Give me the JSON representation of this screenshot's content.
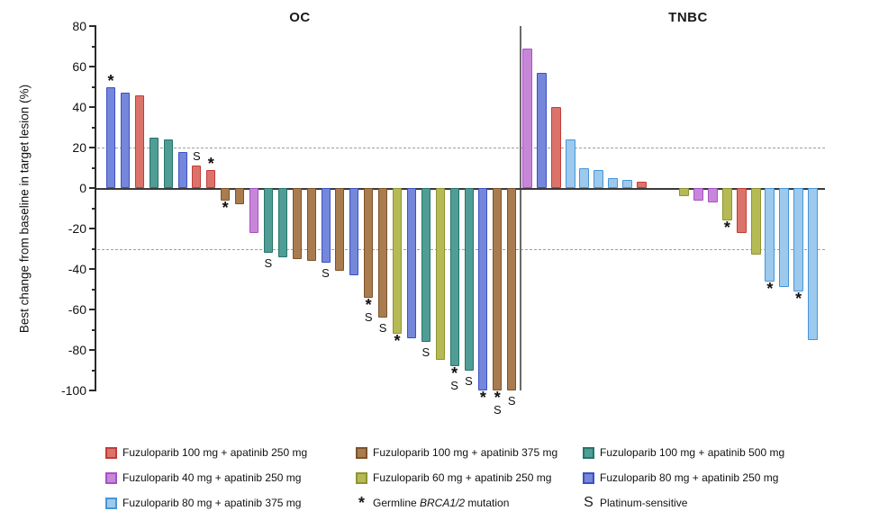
{
  "chart_data": {
    "type": "bar",
    "subtype": "waterfall",
    "title": "",
    "ylabel": "Best change from baseline in target lesion (%)",
    "xlabel": "",
    "ylim": [
      -100,
      80
    ],
    "yticks": [
      80,
      60,
      40,
      20,
      0,
      -20,
      -40,
      -60,
      -80,
      -100
    ],
    "reference_lines": [
      20,
      -30
    ],
    "grid": "horizontal dashed reference lines at +20 and -30 only",
    "legend_position": "bottom",
    "mark_legend": {
      "*": "Germline BRCA1/2 mutation",
      "S": "Platinum-sensitive"
    },
    "groups": {
      "red": "Fuzuloparib 100 mg + apatinib 250 mg",
      "orchid": "Fuzuloparib 40 mg + apatinib 250 mg",
      "lightblue": "Fuzuloparib 80 mg + apatinib 375 mg",
      "brown": "Fuzuloparib 100 mg + apatinib 375 mg",
      "olive": "Fuzuloparib 60 mg + apatinib 250 mg",
      "teal": "Fuzuloparib 100 mg + apatinib 500 mg",
      "blueviolet": "Fuzuloparib 80 mg + apatinib 250 mg"
    },
    "panels": [
      {
        "title": "OC",
        "bars": [
          {
            "value": 50,
            "group": "blueviolet",
            "mark": "*"
          },
          {
            "value": 47,
            "group": "blueviolet",
            "mark": ""
          },
          {
            "value": 46,
            "group": "red",
            "mark": ""
          },
          {
            "value": 25,
            "group": "teal",
            "mark": ""
          },
          {
            "value": 24,
            "group": "teal",
            "mark": ""
          },
          {
            "value": 18,
            "group": "blueviolet",
            "mark": ""
          },
          {
            "value": 11,
            "group": "red",
            "mark": "S"
          },
          {
            "value": 9,
            "group": "red",
            "mark": "*"
          },
          {
            "value": -6,
            "group": "brown",
            "mark": "*"
          },
          {
            "value": -8,
            "group": "brown",
            "mark": ""
          },
          {
            "value": -22,
            "group": "orchid",
            "mark": ""
          },
          {
            "value": -32,
            "group": "teal",
            "mark": "S"
          },
          {
            "value": -34,
            "group": "teal",
            "mark": ""
          },
          {
            "value": -35,
            "group": "brown",
            "mark": ""
          },
          {
            "value": -36,
            "group": "brown",
            "mark": ""
          },
          {
            "value": -37,
            "group": "blueviolet",
            "mark": "S"
          },
          {
            "value": -41,
            "group": "brown",
            "mark": ""
          },
          {
            "value": -43,
            "group": "blueviolet",
            "mark": ""
          },
          {
            "value": -54,
            "group": "brown",
            "mark": "*S"
          },
          {
            "value": -64,
            "group": "brown",
            "mark": "S"
          },
          {
            "value": -72,
            "group": "olive",
            "mark": "*"
          },
          {
            "value": -74,
            "group": "blueviolet",
            "mark": ""
          },
          {
            "value": -76,
            "group": "teal",
            "mark": "S"
          },
          {
            "value": -85,
            "group": "olive",
            "mark": ""
          },
          {
            "value": -88,
            "group": "teal",
            "mark": "*S"
          },
          {
            "value": -90,
            "group": "teal",
            "mark": "S"
          },
          {
            "value": -100,
            "group": "blueviolet",
            "mark": "*"
          },
          {
            "value": -100,
            "group": "brown",
            "mark": "*S"
          },
          {
            "value": -100,
            "group": "brown",
            "mark": "S"
          }
        ]
      },
      {
        "title": "TNBC",
        "bars": [
          {
            "value": 69,
            "group": "orchid",
            "mark": ""
          },
          {
            "value": 57,
            "group": "blueviolet",
            "mark": ""
          },
          {
            "value": 40,
            "group": "red",
            "mark": ""
          },
          {
            "value": 24,
            "group": "lightblue",
            "mark": ""
          },
          {
            "value": 10,
            "group": "lightblue",
            "mark": ""
          },
          {
            "value": 9,
            "group": "lightblue",
            "mark": ""
          },
          {
            "value": 5,
            "group": "lightblue",
            "mark": ""
          },
          {
            "value": 4,
            "group": "lightblue",
            "mark": ""
          },
          {
            "value": 3,
            "group": "red",
            "mark": ""
          },
          {
            "value": 0,
            "group": "none",
            "mark": ""
          },
          {
            "value": 0,
            "group": "none",
            "mark": ""
          },
          {
            "value": -4,
            "group": "olive",
            "mark": ""
          },
          {
            "value": -6,
            "group": "orchid",
            "mark": ""
          },
          {
            "value": -7,
            "group": "orchid",
            "mark": ""
          },
          {
            "value": -16,
            "group": "olive",
            "mark": "*"
          },
          {
            "value": -22,
            "group": "red",
            "mark": ""
          },
          {
            "value": -33,
            "group": "olive",
            "mark": ""
          },
          {
            "value": -46,
            "group": "lightblue",
            "mark": "*"
          },
          {
            "value": -49,
            "group": "lightblue",
            "mark": ""
          },
          {
            "value": -51,
            "group": "lightblue",
            "mark": "*"
          },
          {
            "value": -75,
            "group": "lightblue",
            "mark": ""
          }
        ]
      }
    ]
  },
  "colors": {
    "red": {
      "fill": "#DC736B",
      "stroke": "#C23C38"
    },
    "orchid": {
      "fill": "#C787D8",
      "stroke": "#A84FC8"
    },
    "lightblue": {
      "fill": "#9DC9EC",
      "stroke": "#4496DA"
    },
    "brown": {
      "fill": "#A87C4F",
      "stroke": "#7E5229"
    },
    "olive": {
      "fill": "#B6BA55",
      "stroke": "#8F9430"
    },
    "teal": {
      "fill": "#4F9D95",
      "stroke": "#27746B"
    },
    "blueviolet": {
      "fill": "#7487DB",
      "stroke": "#3C50C3"
    }
  },
  "legend": {
    "columns": [
      {
        "items": [
          {
            "swatch": "red",
            "label": "Fuzuloparib 100 mg + apatinib 250 mg"
          },
          {
            "swatch": "orchid",
            "label": "Fuzuloparib 40 mg + apatinib 250 mg"
          },
          {
            "swatch": "lightblue",
            "label": "Fuzuloparib 80 mg + apatinib 375 mg"
          }
        ]
      },
      {
        "items": [
          {
            "swatch": "brown",
            "label": "Fuzuloparib 100 mg + apatinib 375 mg"
          },
          {
            "swatch": "olive",
            "label": "Fuzuloparib 60 mg + apatinib 250 mg"
          },
          {
            "glyph": "*",
            "label_parts": [
              {
                "text": "Germline "
              },
              {
                "text": "BRCA1/2",
                "italic": true
              },
              {
                "text": " mutation"
              }
            ]
          }
        ]
      },
      {
        "items": [
          {
            "swatch": "teal",
            "label": "Fuzuloparib 100 mg + apatinib 500 mg"
          },
          {
            "swatch": "blueviolet",
            "label": "Fuzuloparib 80 mg + apatinib 250 mg"
          },
          {
            "glyph": "S",
            "label": "Platinum-sensitive"
          }
        ]
      }
    ]
  }
}
